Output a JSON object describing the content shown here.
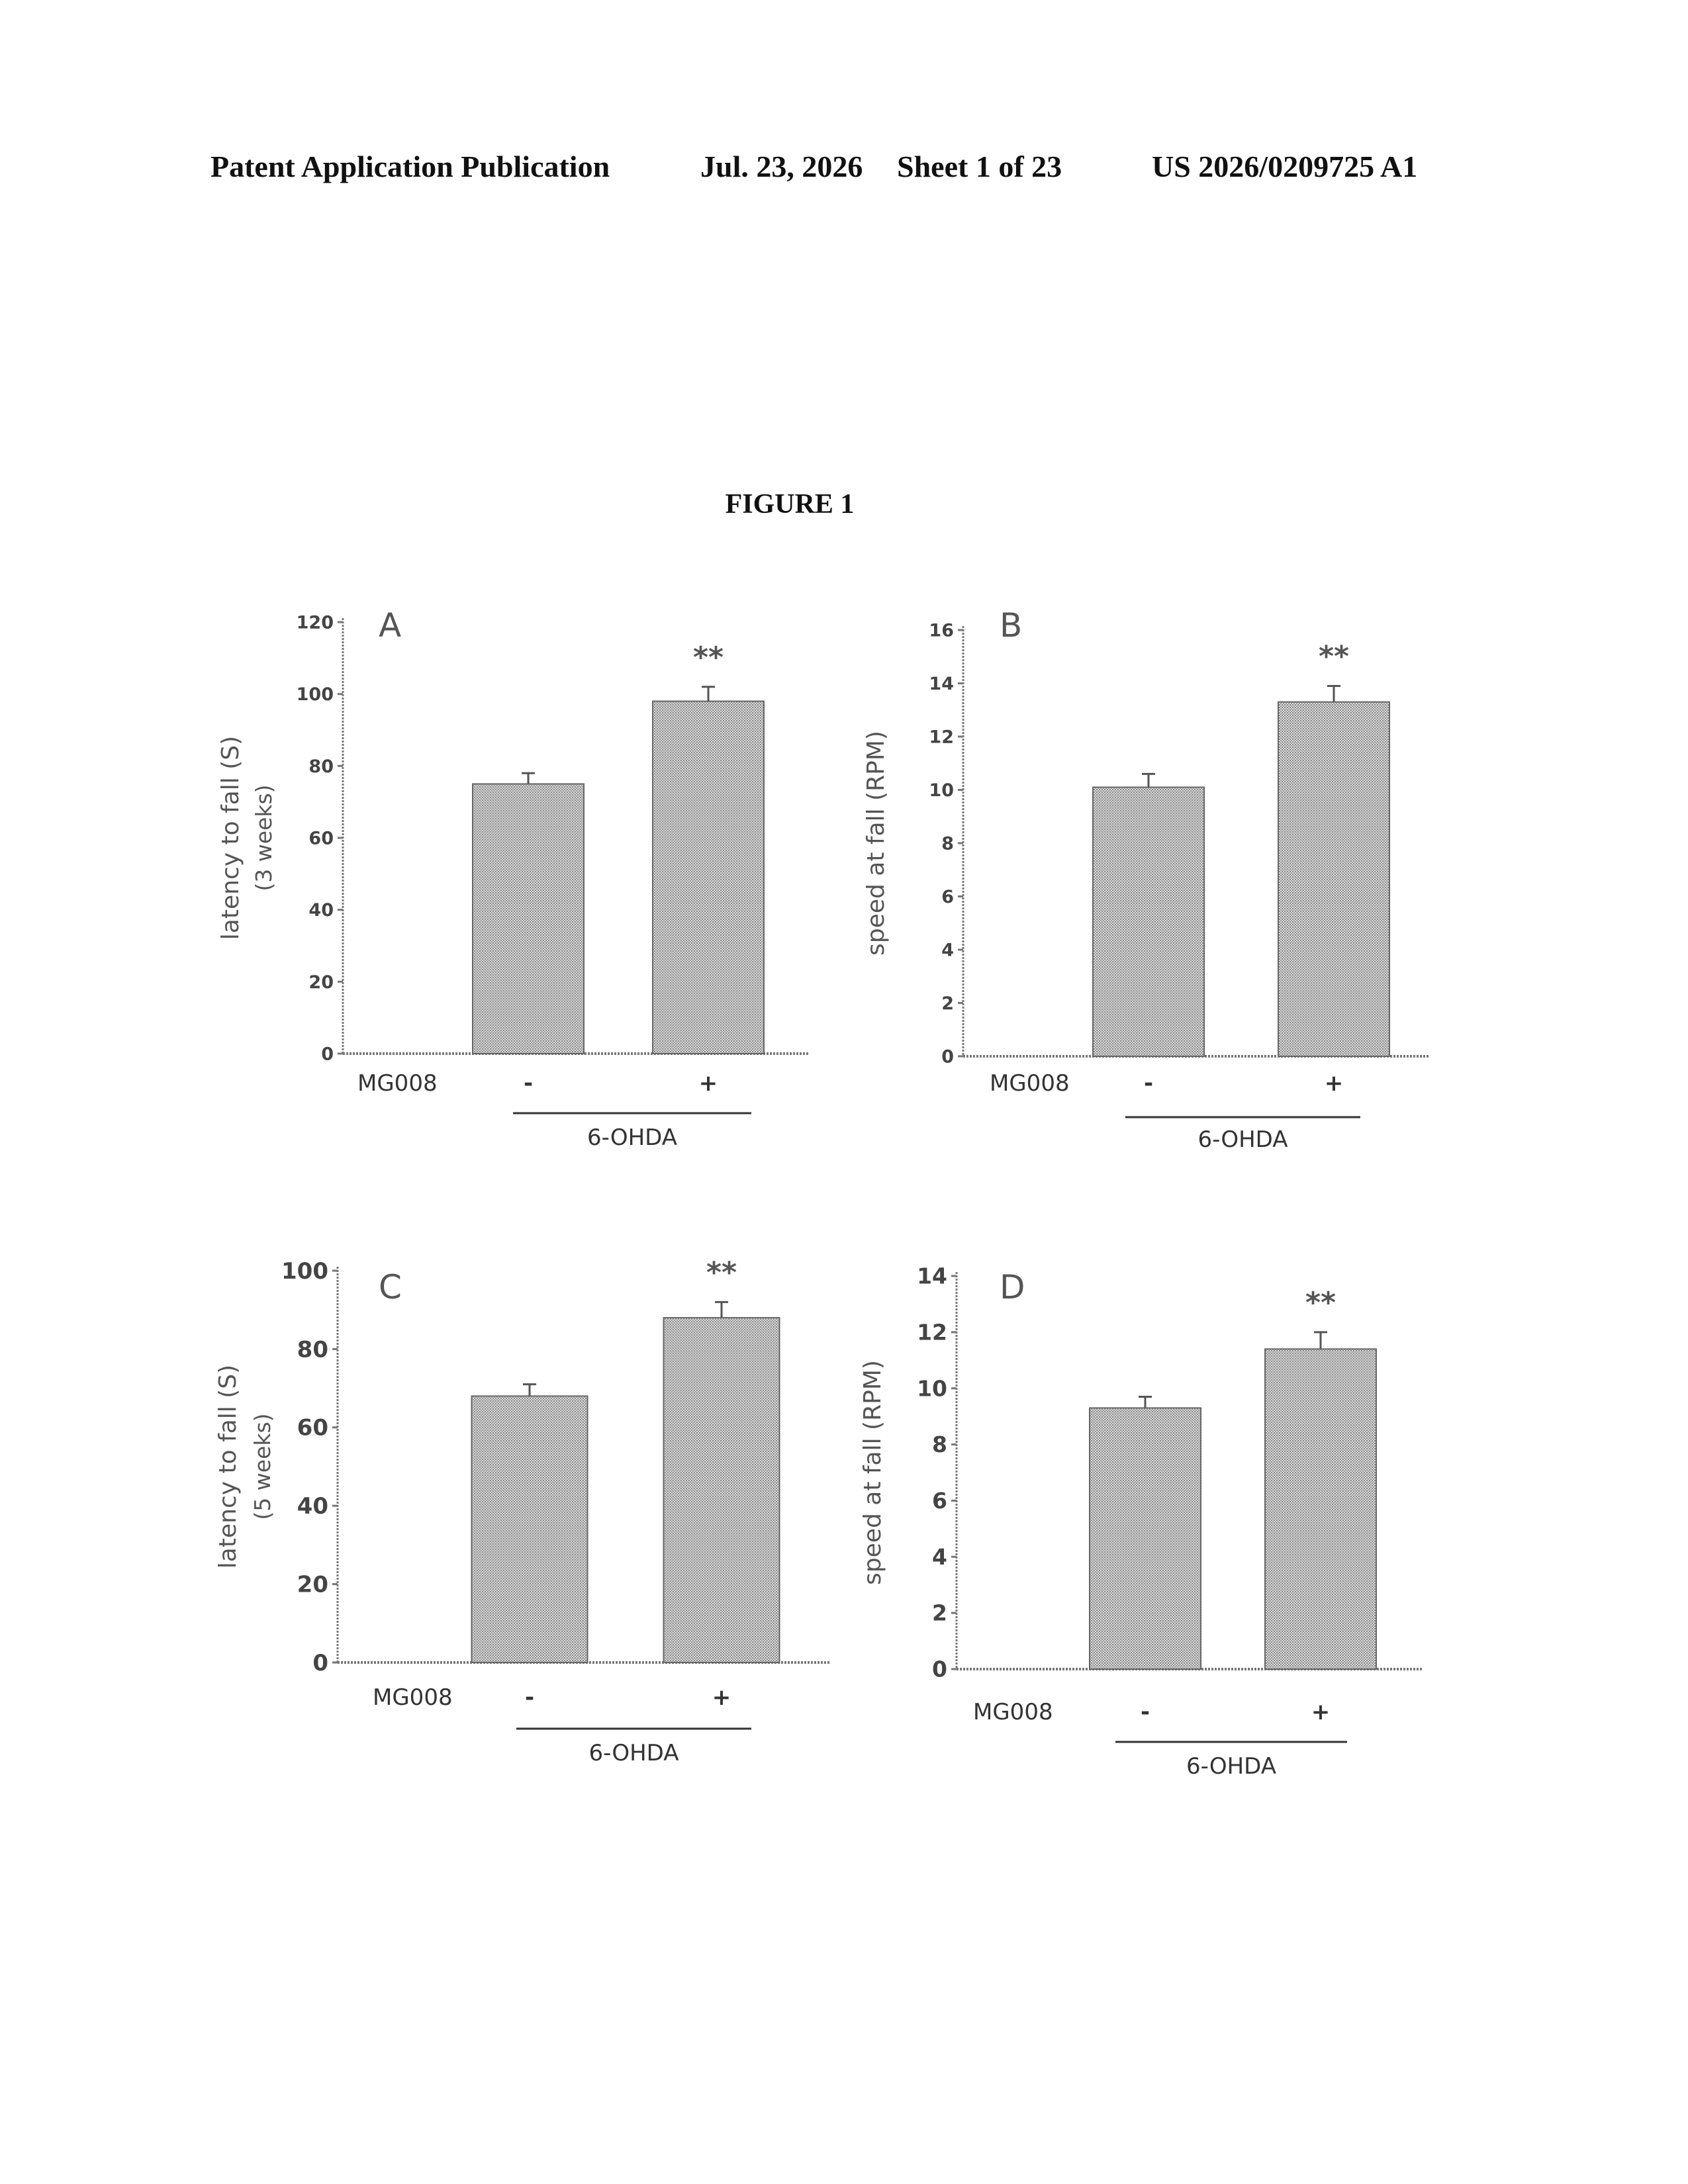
{
  "header": {
    "publication": "Patent Application Publication",
    "date": "Jul. 23, 2026",
    "sheet": "Sheet 1 of 23",
    "number": "US 2026/0209725 A1"
  },
  "figure_title": "FIGURE 1",
  "chart_data": [
    {
      "type": "bar",
      "panel_label": "A",
      "ylabel": "latency to fall (S)",
      "ylabel2": "(3 weeks)",
      "ylim": [
        0,
        120
      ],
      "yticks": [
        0,
        20,
        40,
        60,
        80,
        100,
        120
      ],
      "row_label": "MG008",
      "categories": [
        "",
        "-",
        "+"
      ],
      "group_label": "6-OHDA",
      "values": [
        0,
        75,
        98
      ],
      "errors": [
        0,
        3,
        4
      ],
      "significance": [
        "",
        "",
        "**"
      ]
    },
    {
      "type": "bar",
      "panel_label": "B",
      "ylabel": "speed at fall (RPM)",
      "ylabel2": "",
      "ylim": [
        0,
        16
      ],
      "yticks": [
        0,
        2,
        4,
        6,
        8,
        10,
        12,
        14,
        16
      ],
      "row_label": "MG008",
      "categories": [
        "",
        "-",
        "+"
      ],
      "group_label": "6-OHDA",
      "values": [
        0,
        10.1,
        13.3
      ],
      "errors": [
        0,
        0.5,
        0.6
      ],
      "significance": [
        "",
        "",
        "**"
      ]
    },
    {
      "type": "bar",
      "panel_label": "C",
      "ylabel": "latency to fall (S)",
      "ylabel2": "(5 weeks)",
      "ylim": [
        0,
        100
      ],
      "yticks": [
        0,
        20,
        40,
        60,
        80,
        100
      ],
      "row_label": "MG008",
      "categories": [
        "",
        "-",
        "+"
      ],
      "group_label": "6-OHDA",
      "values": [
        0,
        68,
        88
      ],
      "errors": [
        0,
        3,
        4
      ],
      "significance": [
        "",
        "",
        "**"
      ]
    },
    {
      "type": "bar",
      "panel_label": "D",
      "ylabel": "speed at fall (RPM)",
      "ylabel2": "",
      "ylim": [
        0,
        14
      ],
      "yticks": [
        0,
        2,
        4,
        6,
        8,
        10,
        12,
        14
      ],
      "row_label": "MG008",
      "categories": [
        "",
        "-",
        "+"
      ],
      "group_label": "6-OHDA",
      "values": [
        0,
        9.3,
        11.4
      ],
      "errors": [
        0,
        0.4,
        0.6
      ],
      "significance": [
        "",
        "",
        "**"
      ]
    }
  ]
}
